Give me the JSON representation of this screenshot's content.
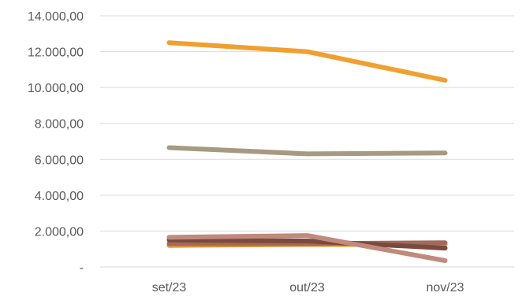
{
  "chart_data": {
    "type": "line",
    "categories": [
      "set/23",
      "out/23",
      "nov/23"
    ],
    "ylim": [
      0,
      14000
    ],
    "y_ticks": [
      {
        "value": 0,
        "label": "-"
      },
      {
        "value": 2000,
        "label": "2.000,00"
      },
      {
        "value": 4000,
        "label": "4.000,00"
      },
      {
        "value": 6000,
        "label": "6.000,00"
      },
      {
        "value": 8000,
        "label": "8.000,00"
      },
      {
        "value": 10000,
        "label": "10.000,00"
      },
      {
        "value": 12000,
        "label": "12.000,00"
      },
      {
        "value": 14000,
        "label": "14.000,00"
      }
    ],
    "grid": true,
    "legend": "none",
    "series": [
      {
        "values": [
          12500,
          12000,
          10400
        ],
        "color": "#f0a030"
      },
      {
        "values": [
          6650,
          6300,
          6350
        ],
        "color": "#a69a80"
      },
      {
        "values": [
          1650,
          1750,
          350
        ],
        "color": "#c08a7c"
      },
      {
        "values": [
          1500,
          1450,
          1050
        ],
        "color": "#7a4a3c"
      },
      {
        "values": [
          1300,
          1300,
          1350
        ],
        "color": "#a26a5c"
      },
      {
        "values": [
          1200,
          1250,
          1250
        ],
        "color": "#e9982a"
      }
    ]
  }
}
